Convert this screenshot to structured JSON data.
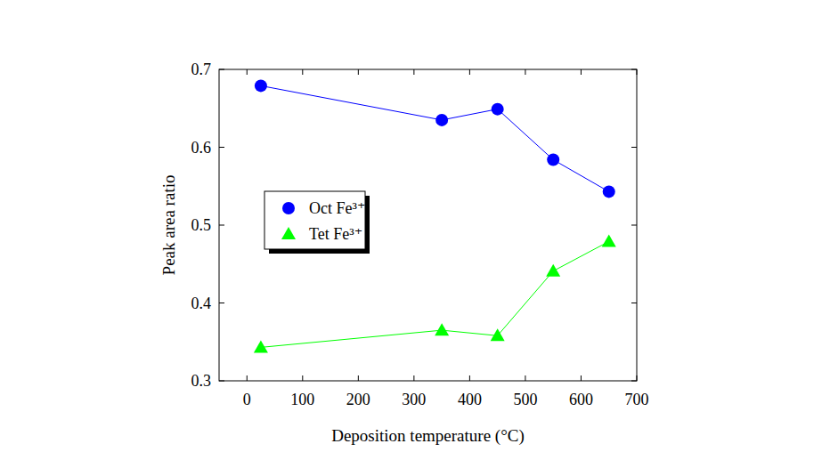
{
  "chart_data": {
    "type": "line",
    "x_label": "Deposition temperature (°C)",
    "y_label": "Peak area ratio",
    "x": [
      25,
      350,
      450,
      550,
      650
    ],
    "series": [
      {
        "name": "Oct Fe³⁺",
        "color": "#0000ff",
        "marker": "circle",
        "line_style": "solid",
        "values": [
          0.679,
          0.635,
          0.649,
          0.584,
          0.543
        ]
      },
      {
        "name": "Tet Fe³⁺",
        "color": "#00ff00",
        "marker": "triangle",
        "line_style": "solid",
        "values": [
          0.343,
          0.365,
          0.358,
          0.441,
          0.479
        ]
      }
    ],
    "xlim": [
      -50,
      700
    ],
    "xticks": [
      0,
      100,
      200,
      300,
      400,
      500,
      600,
      700
    ],
    "ylim": [
      0.3,
      0.7
    ],
    "yticks": [
      0.3,
      0.4,
      0.5,
      0.6,
      0.7
    ],
    "grid": false,
    "legend": "left"
  }
}
